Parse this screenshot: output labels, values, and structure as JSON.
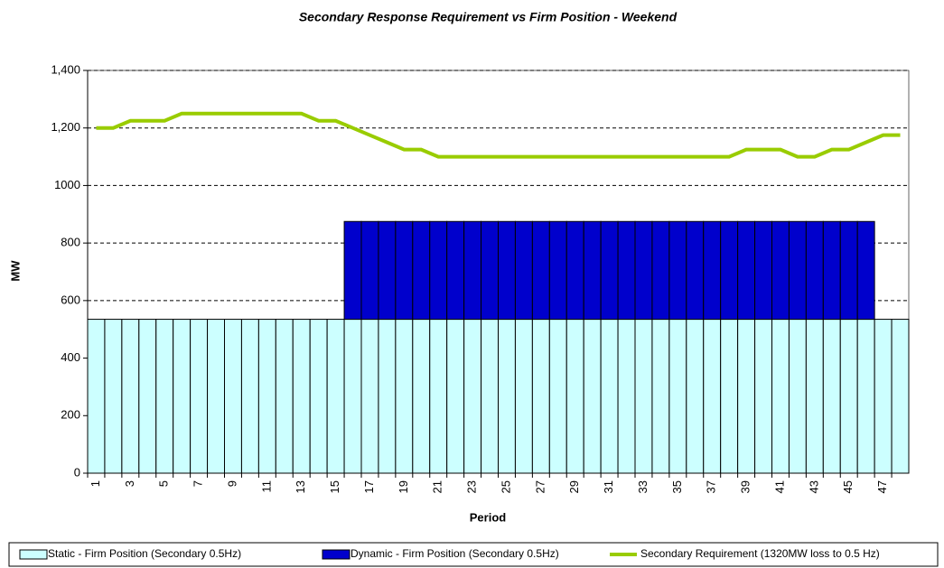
{
  "chart_data": {
    "type": "bar",
    "title": "Secondary Response Requirement vs Firm Position - Weekend",
    "x_label": "Period",
    "y_label": "MW",
    "categories": [
      "1",
      null,
      "3",
      null,
      "5",
      null,
      "7",
      null,
      "9",
      null,
      "11",
      null,
      "13",
      null,
      "15",
      null,
      "17",
      null,
      "19",
      null,
      "21",
      null,
      "23",
      null,
      "25",
      null,
      "27",
      null,
      "29",
      null,
      "31",
      null,
      "33",
      null,
      "35",
      null,
      "37",
      null,
      "39",
      null,
      "41",
      null,
      "43",
      null,
      "45",
      null,
      "47",
      null
    ],
    "series": [
      {
        "name": "Static - Firm Position (Secondary 0.5Hz)",
        "type": "bar",
        "color": "#ccffff",
        "values": [
          535,
          535,
          535,
          535,
          535,
          535,
          535,
          535,
          535,
          535,
          535,
          535,
          535,
          535,
          535,
          535,
          535,
          535,
          535,
          535,
          535,
          535,
          535,
          535,
          535,
          535,
          535,
          535,
          535,
          535,
          535,
          535,
          535,
          535,
          535,
          535,
          535,
          535,
          535,
          535,
          535,
          535,
          535,
          535,
          535,
          535,
          535,
          535
        ]
      },
      {
        "name": "Dynamic - Firm Position (Secondary 0.5Hz)",
        "type": "bar",
        "color": "#0000cc",
        "values": [
          0,
          0,
          0,
          0,
          0,
          0,
          0,
          0,
          0,
          0,
          0,
          0,
          0,
          0,
          0,
          340,
          340,
          340,
          340,
          340,
          340,
          340,
          340,
          340,
          340,
          340,
          340,
          340,
          340,
          340,
          340,
          340,
          340,
          340,
          340,
          340,
          340,
          340,
          340,
          340,
          340,
          340,
          340,
          340,
          340,
          340,
          0,
          0
        ]
      },
      {
        "name": "Secondary Requirement (1320MW loss to 0.5 Hz)",
        "type": "line",
        "color": "#99cc00",
        "values": [
          1200,
          1200,
          1225,
          1225,
          1225,
          1250,
          1250,
          1250,
          1250,
          1250,
          1250,
          1250,
          1250,
          1225,
          1225,
          1200,
          1175,
          1150,
          1125,
          1125,
          1100,
          1100,
          1100,
          1100,
          1100,
          1100,
          1100,
          1100,
          1100,
          1100,
          1100,
          1100,
          1100,
          1100,
          1100,
          1100,
          1100,
          1100,
          1125,
          1125,
          1125,
          1100,
          1100,
          1125,
          1125,
          1150,
          1175,
          1175
        ]
      }
    ],
    "ylim": [
      0,
      1400
    ],
    "yticks": [
      0,
      200,
      400,
      600,
      800,
      1000,
      {
        "value": 1200,
        "label": "1,200"
      },
      {
        "value": 1400,
        "label": "1,400"
      }
    ],
    "grid": true,
    "legend": "bottom"
  }
}
